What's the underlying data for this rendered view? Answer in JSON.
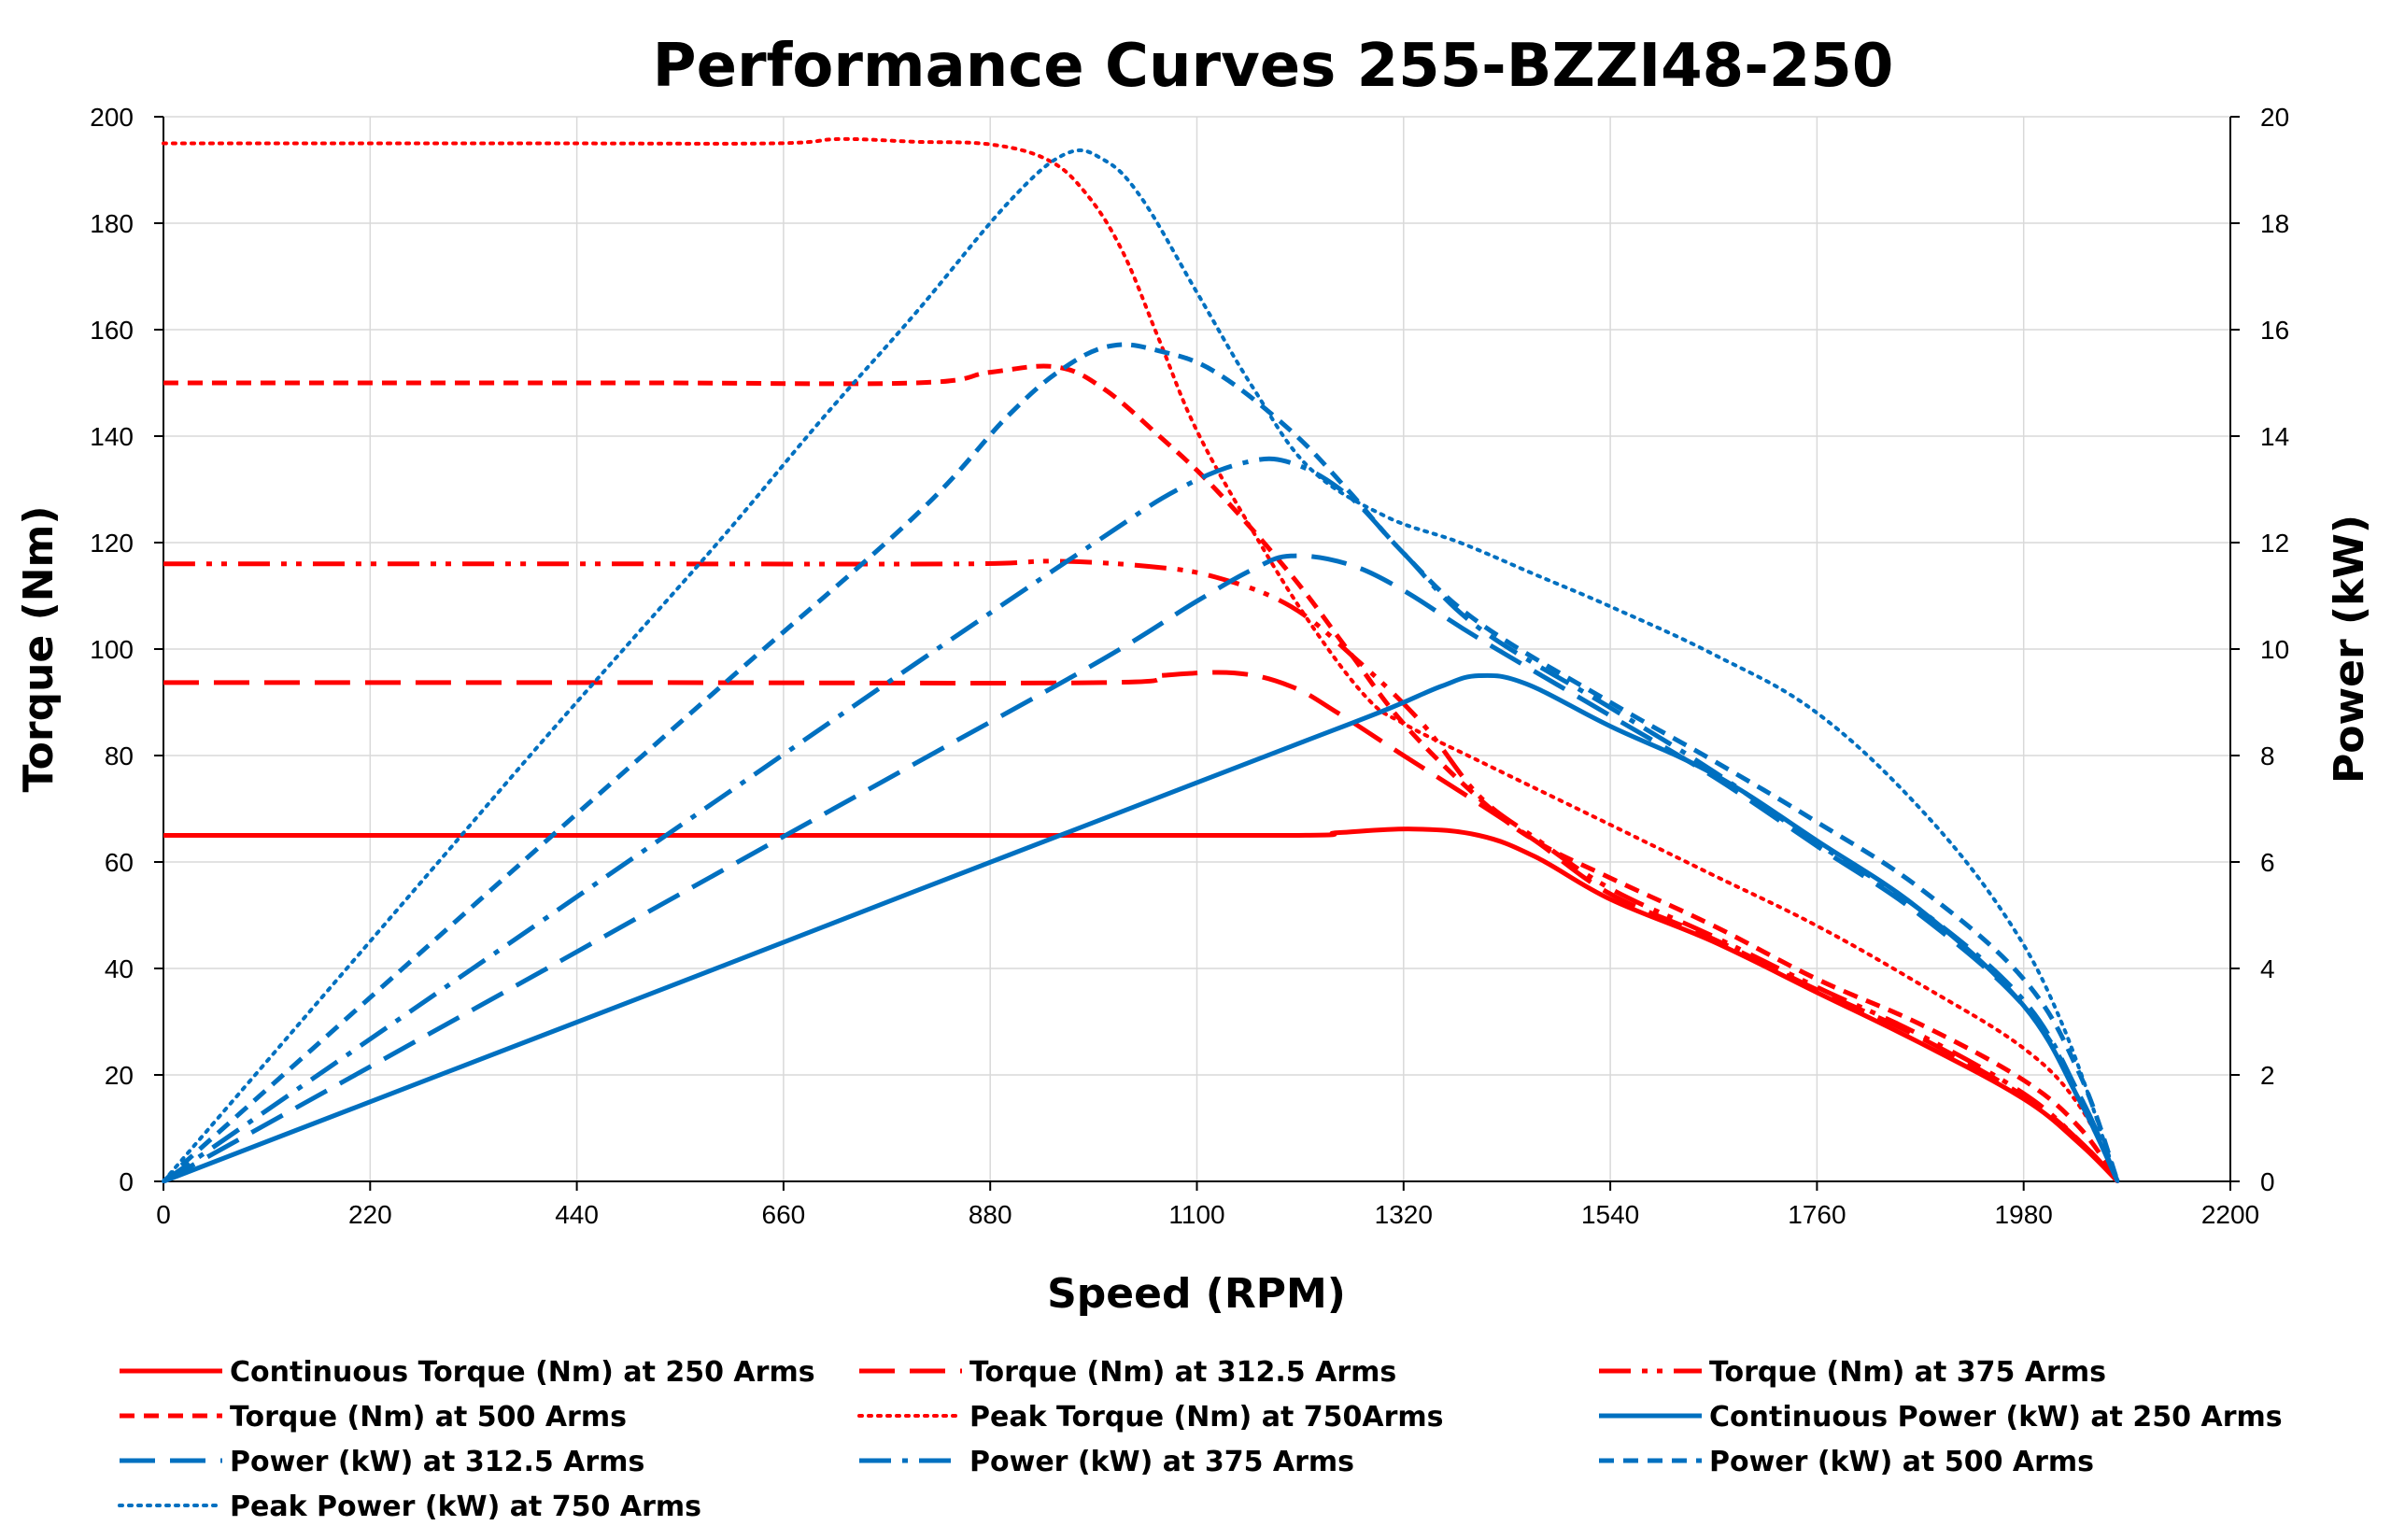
{
  "chart_data": {
    "type": "line",
    "title": "Performance Curves 255-BZZI48-250",
    "xlabel": "Speed (RPM)",
    "ylabel": "Torque (Nm)",
    "y2label": "Power (kW)",
    "xlim": [
      0,
      2200
    ],
    "ylim": [
      0,
      200
    ],
    "y2lim": [
      0,
      20
    ],
    "xticks": [
      0,
      220,
      440,
      660,
      880,
      1100,
      1320,
      1540,
      1760,
      1980,
      2200
    ],
    "yticks": [
      0,
      20,
      40,
      60,
      80,
      100,
      120,
      140,
      160,
      180,
      200
    ],
    "y2ticks": [
      0,
      2,
      4,
      6,
      8,
      10,
      12,
      14,
      16,
      18,
      20
    ],
    "grid": true,
    "legend_position": "bottom",
    "colors": {
      "torque": "#ff0000",
      "power": "#0070c0"
    },
    "series": [
      {
        "name": "Continuous Torque (Nm) at 250 Arms",
        "axis": "left",
        "color": "#ff0000",
        "dash": "solid",
        "points": [
          [
            0,
            65
          ],
          [
            400,
            65
          ],
          [
            800,
            65
          ],
          [
            1200,
            65
          ],
          [
            1250,
            65.5
          ],
          [
            1330,
            66.2
          ],
          [
            1400,
            65
          ],
          [
            1460,
            61
          ],
          [
            1540,
            53
          ],
          [
            1650,
            45
          ],
          [
            1760,
            35.5
          ],
          [
            1870,
            26
          ],
          [
            1980,
            15.5
          ],
          [
            2040,
            7
          ],
          [
            2080,
            0
          ]
        ]
      },
      {
        "name": "Torque (Nm) at 312.5 Arms",
        "axis": "left",
        "color": "#ff0000",
        "dash": "longdash",
        "points": [
          [
            0,
            93.7
          ],
          [
            500,
            93.7
          ],
          [
            1000,
            93.7
          ],
          [
            1060,
            95
          ],
          [
            1140,
            95.5
          ],
          [
            1200,
            93
          ],
          [
            1250,
            88
          ],
          [
            1320,
            80
          ],
          [
            1400,
            71
          ],
          [
            1460,
            64
          ],
          [
            1540,
            54
          ],
          [
            1650,
            45.5
          ],
          [
            1760,
            36
          ],
          [
            1870,
            27
          ],
          [
            1980,
            16
          ],
          [
            2040,
            7.5
          ],
          [
            2080,
            0
          ]
        ]
      },
      {
        "name": "Torque (Nm) at 375 Arms",
        "axis": "left",
        "color": "#ff0000",
        "dash": "dashdotdot",
        "points": [
          [
            0,
            116
          ],
          [
            500,
            116
          ],
          [
            850,
            116
          ],
          [
            950,
            116.5
          ],
          [
            1050,
            115.5
          ],
          [
            1120,
            113.5
          ],
          [
            1200,
            108
          ],
          [
            1270,
            98
          ],
          [
            1340,
            86
          ],
          [
            1400,
            72.5
          ],
          [
            1460,
            64.5
          ],
          [
            1540,
            55
          ],
          [
            1650,
            46
          ],
          [
            1760,
            36.5
          ],
          [
            1870,
            27.5
          ],
          [
            1980,
            16.5
          ],
          [
            2040,
            7.5
          ],
          [
            2080,
            0
          ]
        ]
      },
      {
        "name": "Torque (Nm) at 500 Arms",
        "axis": "left",
        "color": "#ff0000",
        "dash": "shortdash",
        "points": [
          [
            0,
            150
          ],
          [
            500,
            150
          ],
          [
            800,
            150
          ],
          [
            880,
            152
          ],
          [
            950,
            153
          ],
          [
            1000,
            149
          ],
          [
            1060,
            140
          ],
          [
            1120,
            130
          ],
          [
            1200,
            114
          ],
          [
            1260,
            100
          ],
          [
            1320,
            86
          ],
          [
            1400,
            72
          ],
          [
            1460,
            64
          ],
          [
            1540,
            57
          ],
          [
            1650,
            48
          ],
          [
            1760,
            38
          ],
          [
            1870,
            29.5
          ],
          [
            1980,
            19
          ],
          [
            2040,
            10
          ],
          [
            2080,
            0
          ]
        ]
      },
      {
        "name": "Peak  Torque (Nm) at 750Arms",
        "axis": "left",
        "color": "#ff0000",
        "dash": "dotted",
        "points": [
          [
            0,
            195
          ],
          [
            400,
            195
          ],
          [
            650,
            195
          ],
          [
            720,
            195.8
          ],
          [
            800,
            195.3
          ],
          [
            880,
            194.8
          ],
          [
            940,
            192
          ],
          [
            980,
            186
          ],
          [
            1020,
            175
          ],
          [
            1060,
            158
          ],
          [
            1100,
            141
          ],
          [
            1160,
            122
          ],
          [
            1220,
            105
          ],
          [
            1280,
            91
          ],
          [
            1320,
            86
          ],
          [
            1400,
            79
          ],
          [
            1540,
            67
          ],
          [
            1650,
            57.5
          ],
          [
            1760,
            48
          ],
          [
            1870,
            37
          ],
          [
            1980,
            25
          ],
          [
            2040,
            14
          ],
          [
            2080,
            0
          ]
        ]
      },
      {
        "name": "Continuous Power (kW) at 250 Arms",
        "axis": "right",
        "color": "#0070c0",
        "dash": "solid",
        "points": [
          [
            0,
            0
          ],
          [
            200,
            1.36
          ],
          [
            400,
            2.72
          ],
          [
            600,
            4.08
          ],
          [
            800,
            5.45
          ],
          [
            1000,
            6.81
          ],
          [
            1200,
            8.17
          ],
          [
            1300,
            8.85
          ],
          [
            1360,
            9.3
          ],
          [
            1400,
            9.5
          ],
          [
            1450,
            9.35
          ],
          [
            1540,
            8.55
          ],
          [
            1650,
            7.65
          ],
          [
            1760,
            6.4
          ],
          [
            1870,
            5.1
          ],
          [
            1980,
            3.3
          ],
          [
            2040,
            1.5
          ],
          [
            2080,
            0
          ]
        ]
      },
      {
        "name": "Power (kW) at 312.5 Arms",
        "axis": "right",
        "color": "#0070c0",
        "dash": "longdash",
        "points": [
          [
            0,
            0
          ],
          [
            200,
            1.96
          ],
          [
            400,
            3.92
          ],
          [
            600,
            5.89
          ],
          [
            800,
            7.85
          ],
          [
            1000,
            9.81
          ],
          [
            1100,
            10.9
          ],
          [
            1160,
            11.5
          ],
          [
            1200,
            11.75
          ],
          [
            1260,
            11.6
          ],
          [
            1320,
            11.1
          ],
          [
            1400,
            10.2
          ],
          [
            1540,
            8.75
          ],
          [
            1650,
            7.6
          ],
          [
            1760,
            6.3
          ],
          [
            1870,
            5.0
          ],
          [
            1980,
            3.3
          ],
          [
            2040,
            1.6
          ],
          [
            2080,
            0
          ]
        ]
      },
      {
        "name": "Power (kW) at 375 Arms",
        "axis": "right",
        "color": "#0070c0",
        "dash": "dashdot",
        "points": [
          [
            0,
            0
          ],
          [
            200,
            2.43
          ],
          [
            400,
            4.86
          ],
          [
            600,
            7.29
          ],
          [
            800,
            9.72
          ],
          [
            1000,
            12.1
          ],
          [
            1080,
            13.0
          ],
          [
            1150,
            13.5
          ],
          [
            1200,
            13.5
          ],
          [
            1260,
            12.9
          ],
          [
            1320,
            11.8
          ],
          [
            1400,
            10.4
          ],
          [
            1540,
            8.9
          ],
          [
            1650,
            7.7
          ],
          [
            1760,
            6.35
          ],
          [
            1870,
            5.1
          ],
          [
            1980,
            3.4
          ],
          [
            2040,
            1.6
          ],
          [
            2080,
            0
          ]
        ]
      },
      {
        "name": "Power (kW) at 500 Arms",
        "axis": "right",
        "color": "#0070c0",
        "dash": "shortdash",
        "points": [
          [
            0,
            0
          ],
          [
            200,
            3.14
          ],
          [
            400,
            6.28
          ],
          [
            600,
            9.4
          ],
          [
            800,
            12.5
          ],
          [
            900,
            14.4
          ],
          [
            960,
            15.3
          ],
          [
            1010,
            15.7
          ],
          [
            1060,
            15.6
          ],
          [
            1120,
            15.2
          ],
          [
            1200,
            14.1
          ],
          [
            1260,
            13.0
          ],
          [
            1320,
            11.8
          ],
          [
            1400,
            10.5
          ],
          [
            1540,
            9.0
          ],
          [
            1650,
            7.9
          ],
          [
            1760,
            6.75
          ],
          [
            1870,
            5.5
          ],
          [
            1980,
            3.8
          ],
          [
            2040,
            2.0
          ],
          [
            2080,
            0
          ]
        ]
      },
      {
        "name": "Peak Power (kW) at 750 Arms",
        "axis": "right",
        "color": "#0070c0",
        "dash": "dotted",
        "points": [
          [
            0,
            0
          ],
          [
            100,
            2.05
          ],
          [
            200,
            4.1
          ],
          [
            300,
            6.15
          ],
          [
            400,
            8.2
          ],
          [
            500,
            10.2
          ],
          [
            600,
            12.2
          ],
          [
            700,
            14.3
          ],
          [
            800,
            16.3
          ],
          [
            900,
            18.4
          ],
          [
            960,
            19.3
          ],
          [
            1000,
            19.2
          ],
          [
            1040,
            18.5
          ],
          [
            1100,
            16.7
          ],
          [
            1160,
            14.9
          ],
          [
            1220,
            13.4
          ],
          [
            1300,
            12.5
          ],
          [
            1380,
            12.0
          ],
          [
            1460,
            11.4
          ],
          [
            1540,
            10.8
          ],
          [
            1650,
            9.9
          ],
          [
            1760,
            8.8
          ],
          [
            1870,
            7.0
          ],
          [
            1960,
            5.0
          ],
          [
            2020,
            3.0
          ],
          [
            2080,
            0
          ]
        ]
      }
    ]
  }
}
